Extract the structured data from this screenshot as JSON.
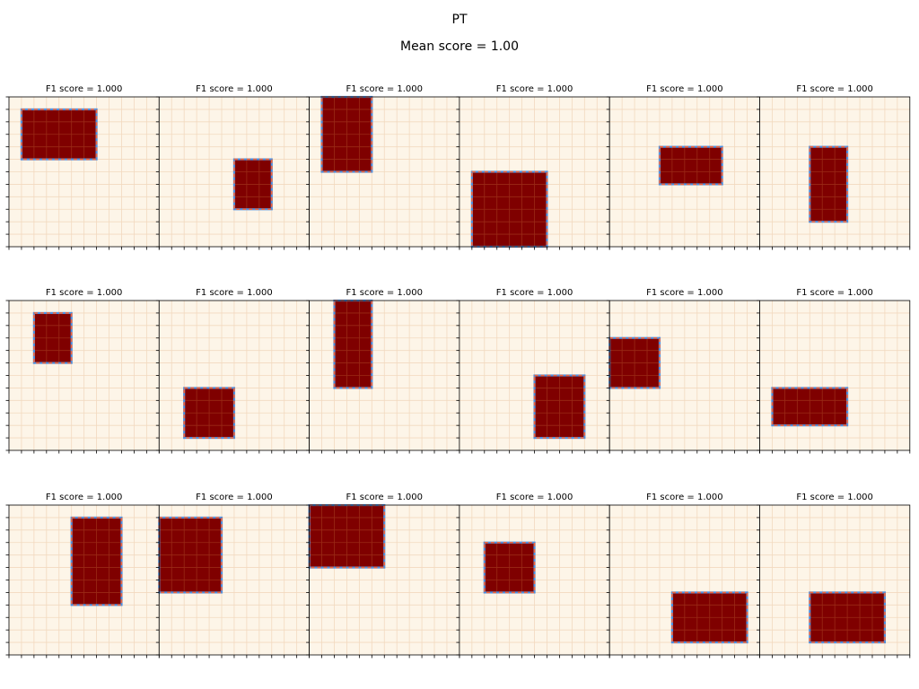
{
  "figure": {
    "title": "PT",
    "subtitle": "Mean score = 1.00"
  },
  "colors": {
    "background": "#fdf5e8",
    "grid": "#f2d9bf",
    "cell_fill": "#7f0000",
    "cell_line": "#9a2a16",
    "prediction_box": "#4a90e2",
    "ground_truth_box": "#f0643c"
  },
  "chart_data": {
    "type": "heatmap",
    "grid_size": 12,
    "rows": 3,
    "cols": 6,
    "panels": [
      {
        "title": "F1 score = 1.000",
        "region": {
          "col": 1,
          "row": 1,
          "w": 6,
          "h": 4
        },
        "pred_box": {
          "col": 1,
          "row": 1,
          "w": 6,
          "h": 4
        },
        "true_box": {
          "col": 1,
          "row": 1,
          "w": 6,
          "h": 4
        }
      },
      {
        "title": "F1 score = 1.000",
        "region": {
          "col": 6,
          "row": 5,
          "w": 3,
          "h": 4
        },
        "pred_box": {
          "col": 6,
          "row": 5,
          "w": 3,
          "h": 4
        },
        "true_box": {
          "col": 6,
          "row": 5,
          "w": 3,
          "h": 4
        }
      },
      {
        "title": "F1 score = 1.000",
        "region": {
          "col": 1,
          "row": 0,
          "w": 4,
          "h": 6
        },
        "pred_box": {
          "col": 1,
          "row": 0,
          "w": 4,
          "h": 6
        },
        "true_box": {
          "col": 1,
          "row": 0,
          "w": 4,
          "h": 6
        }
      },
      {
        "title": "F1 score = 1.000",
        "region": {
          "col": 1,
          "row": 6,
          "w": 6,
          "h": 6
        },
        "pred_box": {
          "col": 1,
          "row": 6,
          "w": 6,
          "h": 6
        },
        "true_box": {
          "col": 1,
          "row": 6,
          "w": 6,
          "h": 6
        }
      },
      {
        "title": "F1 score = 1.000",
        "region": {
          "col": 4,
          "row": 4,
          "w": 5,
          "h": 3
        },
        "pred_box": {
          "col": 4,
          "row": 4,
          "w": 5,
          "h": 3
        },
        "true_box": {
          "col": 4,
          "row": 4,
          "w": 5,
          "h": 3
        }
      },
      {
        "title": "F1 score = 1.000",
        "region": {
          "col": 4,
          "row": 4,
          "w": 3,
          "h": 6
        },
        "pred_box": {
          "col": 4,
          "row": 4,
          "w": 3,
          "h": 6
        },
        "true_box": {
          "col": 4,
          "row": 4,
          "w": 3,
          "h": 6
        }
      },
      {
        "title": "F1 score = 1.000",
        "region": {
          "col": 2,
          "row": 1,
          "w": 3,
          "h": 4
        },
        "pred_box": {
          "col": 2,
          "row": 1,
          "w": 3,
          "h": 4
        },
        "true_box": {
          "col": 2,
          "row": 1,
          "w": 3,
          "h": 4
        }
      },
      {
        "title": "F1 score = 1.000",
        "region": {
          "col": 2,
          "row": 7,
          "w": 4,
          "h": 4
        },
        "pred_box": {
          "col": 2,
          "row": 7,
          "w": 4,
          "h": 4
        },
        "true_box": {
          "col": 2,
          "row": 7,
          "w": 4,
          "h": 4
        }
      },
      {
        "title": "F1 score = 1.000",
        "region": {
          "col": 2,
          "row": 0,
          "w": 3,
          "h": 7
        },
        "pred_box": {
          "col": 2,
          "row": 0,
          "w": 3,
          "h": 7
        },
        "true_box": {
          "col": 2,
          "row": 0,
          "w": 3,
          "h": 7
        }
      },
      {
        "title": "F1 score = 1.000",
        "region": {
          "col": 6,
          "row": 6,
          "w": 4,
          "h": 5
        },
        "pred_box": {
          "col": 6,
          "row": 6,
          "w": 4,
          "h": 5
        },
        "true_box": {
          "col": 6,
          "row": 6,
          "w": 4,
          "h": 5
        }
      },
      {
        "title": "F1 score = 1.000",
        "region": {
          "col": 0,
          "row": 3,
          "w": 4,
          "h": 4
        },
        "pred_box": {
          "col": 0,
          "row": 3,
          "w": 4,
          "h": 4
        },
        "true_box": {
          "col": 0,
          "row": 3,
          "w": 4,
          "h": 4
        }
      },
      {
        "title": "F1 score = 1.000",
        "region": {
          "col": 1,
          "row": 7,
          "w": 6,
          "h": 3
        },
        "pred_box": {
          "col": 1,
          "row": 7,
          "w": 6,
          "h": 3
        },
        "true_box": {
          "col": 1,
          "row": 7,
          "w": 6,
          "h": 3
        }
      },
      {
        "title": "F1 score = 1.000",
        "region": {
          "col": 5,
          "row": 1,
          "w": 4,
          "h": 7
        },
        "pred_box": {
          "col": 5,
          "row": 1,
          "w": 4,
          "h": 7
        },
        "true_box": {
          "col": 5,
          "row": 1,
          "w": 4,
          "h": 7
        }
      },
      {
        "title": "F1 score = 1.000",
        "region": {
          "col": 0,
          "row": 1,
          "w": 5,
          "h": 6
        },
        "pred_box": {
          "col": 0,
          "row": 1,
          "w": 5,
          "h": 6
        },
        "true_box": {
          "col": 0,
          "row": 1,
          "w": 5,
          "h": 6
        }
      },
      {
        "title": "F1 score = 1.000",
        "region": {
          "col": 0,
          "row": 0,
          "w": 6,
          "h": 5
        },
        "pred_box": {
          "col": 0,
          "row": 0,
          "w": 6,
          "h": 5
        },
        "true_box": {
          "col": 0,
          "row": 0,
          "w": 6,
          "h": 5
        }
      },
      {
        "title": "F1 score = 1.000",
        "region": {
          "col": 2,
          "row": 3,
          "w": 4,
          "h": 4
        },
        "pred_box": {
          "col": 2,
          "row": 3,
          "w": 4,
          "h": 4
        },
        "true_box": {
          "col": 2,
          "row": 3,
          "w": 4,
          "h": 4
        }
      },
      {
        "title": "F1 score = 1.000",
        "region": {
          "col": 5,
          "row": 7,
          "w": 6,
          "h": 4
        },
        "pred_box": {
          "col": 5,
          "row": 7,
          "w": 6,
          "h": 4
        },
        "true_box": {
          "col": 5,
          "row": 7,
          "w": 6,
          "h": 4
        }
      },
      {
        "title": "F1 score = 1.000",
        "region": {
          "col": 4,
          "row": 7,
          "w": 6,
          "h": 4
        },
        "pred_box": {
          "col": 4,
          "row": 7,
          "w": 6,
          "h": 4
        },
        "true_box": {
          "col": 4,
          "row": 7,
          "w": 6,
          "h": 4
        }
      }
    ]
  }
}
